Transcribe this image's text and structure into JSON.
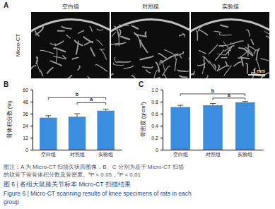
{
  "panel_a": {
    "panel": "A",
    "row_label": "Micro-CT",
    "columns": [
      "空白组",
      "对照组",
      "实验组"
    ],
    "scale_bar": "1 mm"
  },
  "chart_data": [
    {
      "panel": "B",
      "type": "bar",
      "y_label": "骨体积分数 (%)",
      "categories": [
        "空白组",
        "对照组",
        "实验组"
      ],
      "values": [
        32,
        33,
        39
      ],
      "errors": [
        2,
        3,
        1.5
      ],
      "color": "#3b8de0",
      "ylim": [
        0,
        60
      ],
      "yticks": [
        0,
        12,
        24,
        36,
        48,
        60
      ],
      "annotations": [
        {
          "from": 1,
          "to": 2,
          "label": "a",
          "y": 47
        },
        {
          "from": 0,
          "to": 2,
          "label": "b",
          "y": 52
        }
      ]
    },
    {
      "panel": "C",
      "type": "bar",
      "y_label": "骨密度 (g/cm³)",
      "categories": [
        "空白组",
        "对照组",
        "实验组"
      ],
      "values": [
        0.71,
        0.74,
        0.79
      ],
      "errors": [
        0.03,
        0.03,
        0.015
      ],
      "color": "#3b8de0",
      "ylim": [
        0,
        1
      ],
      "yticks": [
        0,
        0.2,
        0.4,
        0.6,
        0.8,
        {
          "value": 1,
          "label": "1.0"
        }
      ],
      "annotations": [
        {
          "from": 1,
          "to": 2,
          "label": "a",
          "y": 0.86
        },
        {
          "from": 0,
          "to": 2,
          "label": "b",
          "y": 0.93
        }
      ]
    }
  ],
  "caption": {
    "lines": [
      [
        {
          "text": "图注：A 为 Micro-CT 扫描矢状面图像，B、C 分别为基于 Micro-CT 扫描"
        }
      ],
      [
        {
          "text": "的软骨下骨骨体积分数及骨密度。"
        },
        {
          "text": "a",
          "sup": true
        },
        {
          "text": "P < 0.05，"
        },
        {
          "text": "b",
          "sup": true
        },
        {
          "text": "P < 0.01"
        }
      ]
    ],
    "title_zh": "图 6 | 各组大鼠膝关节标本 Micro-CT 扫描结果",
    "title_en": [
      "Figure 6 | Micro-CT scanning results of knee specimens of rats in each",
      "group"
    ]
  }
}
